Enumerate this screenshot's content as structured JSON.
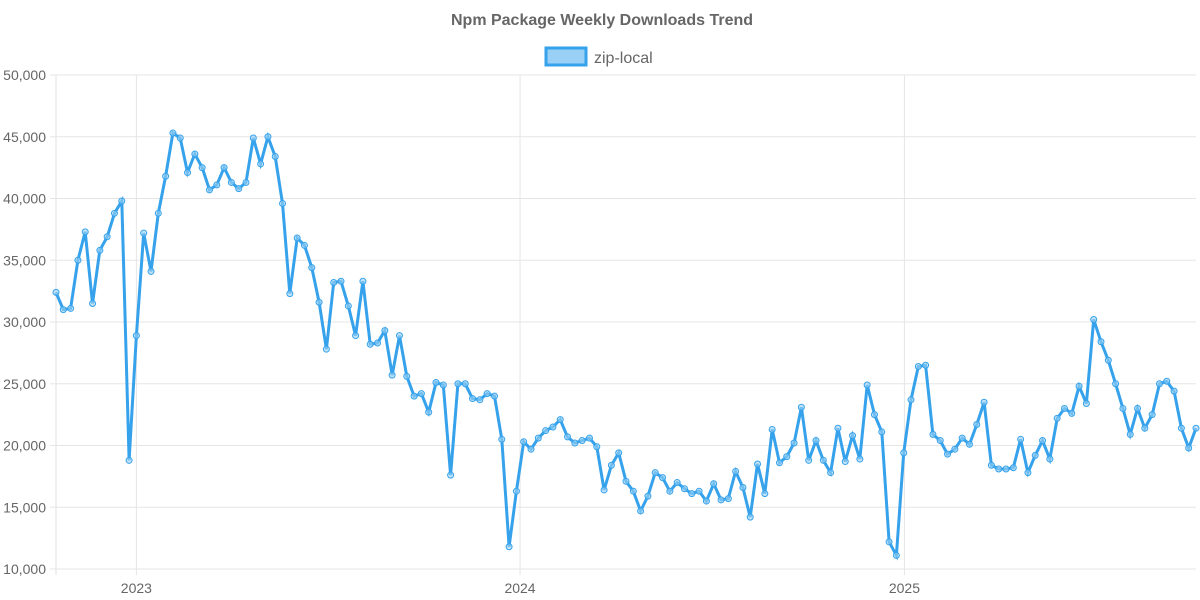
{
  "chart_data": {
    "type": "line",
    "title": "Npm Package Weekly Downloads Trend",
    "xlabel": "",
    "ylabel": "",
    "ylim": [
      10000,
      50000
    ],
    "y_ticks": [
      "10,000",
      "15,000",
      "20,000",
      "25,000",
      "30,000",
      "35,000",
      "40,000",
      "45,000",
      "50,000"
    ],
    "y_tick_values": [
      10000,
      15000,
      20000,
      25000,
      30000,
      35000,
      40000,
      45000,
      50000
    ],
    "x_unit": "week index",
    "x_ticks": [
      {
        "label": "2023",
        "week": 11
      },
      {
        "label": "2024",
        "week": 63.5
      },
      {
        "label": "2025",
        "week": 116.1
      }
    ],
    "grid": true,
    "legend_position": "top-center",
    "colors": {
      "line": "#36a2eb",
      "fill": "#9ad0f5",
      "grid": "#e5e5e5",
      "text": "#666666"
    },
    "series": [
      {
        "name": "zip-local",
        "values": [
          32400,
          31000,
          31100,
          35000,
          37300,
          31500,
          35800,
          36900,
          38800,
          39800,
          18800,
          28900,
          37200,
          34100,
          38800,
          41800,
          45300,
          44900,
          42100,
          43600,
          42500,
          40700,
          41100,
          42500,
          41300,
          40800,
          41300,
          44900,
          42800,
          45000,
          43400,
          39600,
          32300,
          36800,
          36200,
          34400,
          31600,
          27800,
          33200,
          33300,
          31300,
          28900,
          33300,
          28200,
          28300,
          29300,
          25700,
          28900,
          25600,
          24000,
          24200,
          22700,
          25100,
          24900,
          17600,
          25000,
          25000,
          23800,
          23700,
          24200,
          24000,
          20500,
          11800,
          16300,
          20300,
          19700,
          20600,
          21200,
          21500,
          22100,
          20700,
          20200,
          20400,
          20600,
          19900,
          16400,
          18400,
          19400,
          17100,
          16300,
          14700,
          15900,
          17800,
          17400,
          16300,
          17000,
          16500,
          16100,
          16300,
          15500,
          16900,
          15600,
          15700,
          17900,
          16600,
          14200,
          18500,
          16100,
          21300,
          18600,
          19100,
          20200,
          23100,
          18800,
          20400,
          18800,
          17800,
          21400,
          18700,
          20800,
          18900,
          24900,
          22500,
          21100,
          12200,
          11100,
          19400,
          23700,
          26400,
          26500,
          20900,
          20400,
          19300,
          19700,
          20600,
          20100,
          21700,
          23500,
          18400,
          18100,
          18100,
          18200,
          20500,
          17800,
          19200,
          20400,
          18900,
          22200,
          23000,
          22600,
          24800,
          23400,
          30200,
          28400,
          26900,
          25000,
          23000,
          20900,
          23000,
          21400,
          22500,
          25000,
          25200,
          24400,
          21400,
          19800,
          21400
        ]
      }
    ]
  }
}
